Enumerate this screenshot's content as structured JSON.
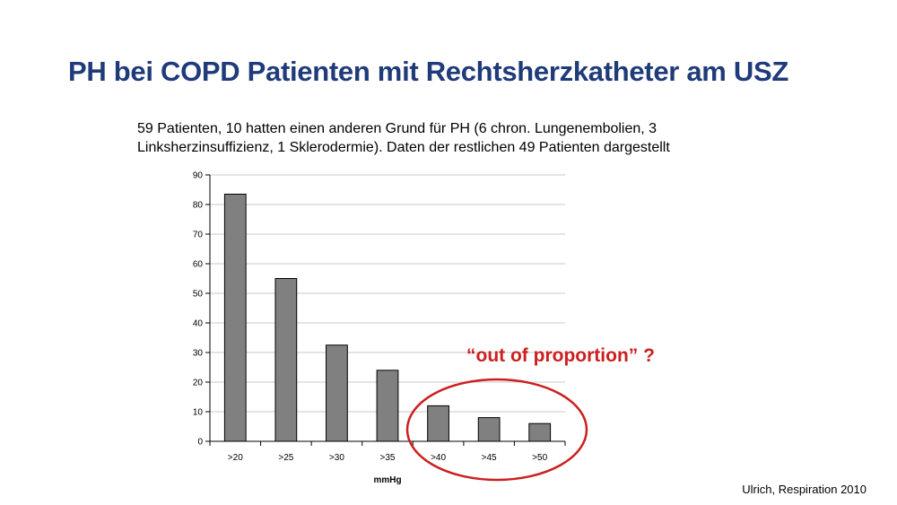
{
  "slide": {
    "title": "PH bei COPD Patienten mit Rechtsherzkatheter am USZ",
    "subtitle": "59 Patienten, 10 hatten einen anderen Grund für PH (6 chron. Lungenembolien, 3 Linksherzinsuffizienz, 1 Sklerodermie). Daten der restlichen 49 Patienten dargestellt",
    "citation": "Ulrich, Respiration 2010"
  },
  "chart_data": {
    "type": "bar",
    "title": "",
    "xlabel": "mmHg",
    "ylabel": "",
    "categories": [
      ">20",
      ">25",
      ">30",
      ">35",
      ">40",
      ">45",
      ">50"
    ],
    "values": [
      83.5,
      55,
      32.5,
      24,
      12,
      8,
      6
    ],
    "ylim": [
      0,
      90
    ],
    "yticks": [
      0,
      10,
      20,
      30,
      40,
      50,
      60,
      70,
      80,
      90
    ],
    "grid": true,
    "bar_color": "#808080",
    "annotation": {
      "text": "“out of proportion” ?",
      "color": "#cc1f1f",
      "highlighted_categories": [
        ">40",
        ">45",
        ">50"
      ]
    }
  }
}
